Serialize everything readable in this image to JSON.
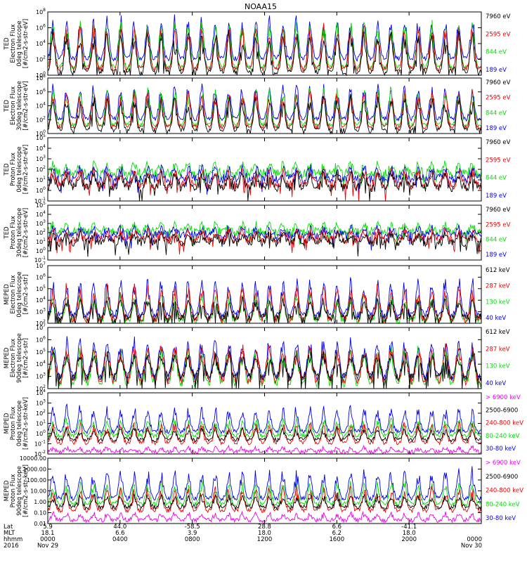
{
  "title": "NOAA15",
  "colors": {
    "black": "#000000",
    "blue": "#0000ee",
    "red": "#ee0000",
    "green": "#00dd00",
    "magenta": "#ee00ee"
  },
  "chart_data": [
    {
      "type": "line",
      "instrument": "TED",
      "ylabel": [
        "TED",
        "Electron Flux",
        "0deg telescope",
        "[#/cm2-s-str-eV]"
      ],
      "yscale": "log",
      "ylim_exp": [
        0,
        8
      ],
      "ytick_labels": [
        "10^0",
        "10^2",
        "10^4",
        "10^6",
        "10^8"
      ],
      "legend": [
        {
          "label": "7960 eV",
          "color": "black"
        },
        {
          "label": "2595 eV",
          "color": "red"
        },
        {
          "label": "844 eV",
          "color": "green"
        },
        {
          "label": "189 eV",
          "color": "blue"
        }
      ],
      "profile": "electron_ted",
      "series": [
        {
          "color": "blue",
          "base_exp": 2.1,
          "peak_exp": 7.6
        },
        {
          "color": "green",
          "base_exp": 1.0,
          "peak_exp": 7.0
        },
        {
          "color": "red",
          "base_exp": 0.8,
          "peak_exp": 6.5
        },
        {
          "color": "black",
          "base_exp": 0.4,
          "peak_exp": 5.8
        }
      ]
    },
    {
      "type": "line",
      "instrument": "TED",
      "ylabel": [
        "TED",
        "Electron Flux",
        "30deg telescope",
        "[#/cm2-s-str-eV]"
      ],
      "yscale": "log",
      "ylim_exp": [
        0,
        8
      ],
      "ytick_labels": [
        "10^0",
        "10^2",
        "10^4",
        "10^6",
        "10^8"
      ],
      "legend": [
        {
          "label": "7960 eV",
          "color": "black"
        },
        {
          "label": "2595 eV",
          "color": "red"
        },
        {
          "label": "844 eV",
          "color": "green"
        },
        {
          "label": "189 eV",
          "color": "blue"
        }
      ],
      "profile": "electron_ted",
      "series": [
        {
          "color": "blue",
          "base_exp": 2.1,
          "peak_exp": 7.2
        },
        {
          "color": "green",
          "base_exp": 1.2,
          "peak_exp": 6.8
        },
        {
          "color": "red",
          "base_exp": 0.9,
          "peak_exp": 6.2
        },
        {
          "color": "black",
          "base_exp": 0.5,
          "peak_exp": 5.6
        }
      ]
    },
    {
      "type": "line",
      "instrument": "TED",
      "ylabel": [
        "TED",
        "Proton Flux",
        "0deg telescope",
        "[#/cm2-s-str-eV]"
      ],
      "yscale": "log",
      "ylim_exp": [
        -1,
        5
      ],
      "ytick_labels": [
        "10^-1",
        "10^0",
        "10^1",
        "10^2",
        "10^3",
        "10^4",
        "10^5"
      ],
      "legend": [
        {
          "label": "7960 eV",
          "color": "black"
        },
        {
          "label": "2595 eV",
          "color": "red"
        },
        {
          "label": "844 eV",
          "color": "green"
        },
        {
          "label": "189 eV",
          "color": "blue"
        }
      ],
      "profile": "proton_ted",
      "series": [
        {
          "color": "green",
          "base_exp": 1.6,
          "peak_exp": 2.6
        },
        {
          "color": "blue",
          "base_exp": 1.1,
          "peak_exp": 2.3
        },
        {
          "color": "red",
          "base_exp": 0.5,
          "peak_exp": 2.0
        },
        {
          "color": "black",
          "base_exp": 0.3,
          "peak_exp": 1.8
        }
      ]
    },
    {
      "type": "line",
      "instrument": "TED",
      "ylabel": [
        "TED",
        "Proton Flux",
        "30deg telescope",
        "[#/cm2-s-str-eV]"
      ],
      "yscale": "log",
      "ylim_exp": [
        -1,
        5
      ],
      "ytick_labels": [
        "10^-1",
        "10^0",
        "10^1",
        "10^2",
        "10^3",
        "10^4",
        "10^5"
      ],
      "legend": [
        {
          "label": "7960 eV",
          "color": "black"
        },
        {
          "label": "2595 eV",
          "color": "red"
        },
        {
          "label": "844 eV",
          "color": "green"
        },
        {
          "label": "189 eV",
          "color": "blue"
        }
      ],
      "profile": "proton_ted",
      "series": [
        {
          "color": "green",
          "base_exp": 2.1,
          "peak_exp": 3.0
        },
        {
          "color": "blue",
          "base_exp": 1.7,
          "peak_exp": 2.6
        },
        {
          "color": "red",
          "base_exp": 1.2,
          "peak_exp": 2.3
        },
        {
          "color": "black",
          "base_exp": 0.9,
          "peak_exp": 2.0
        }
      ]
    },
    {
      "type": "line",
      "instrument": "MEPED",
      "ylabel": [
        "MEPED",
        "Electron Flux",
        "0deg telescope",
        "[#/cm2-s-str]"
      ],
      "yscale": "log",
      "ylim_exp": [
        2,
        7
      ],
      "ytick_labels": [
        "10^2",
        "10^3",
        "10^4",
        "10^5",
        "10^6",
        "10^7"
      ],
      "legend": [
        {
          "label": "612 keV",
          "color": "black"
        },
        {
          "label": "287 keV",
          "color": "red"
        },
        {
          "label": "130 keV",
          "color": "green"
        },
        {
          "label": "40 keV",
          "color": "blue"
        }
      ],
      "profile": "meped_e0",
      "series": [
        {
          "color": "blue",
          "base_exp": 2.7,
          "peak_exp": 6.0
        },
        {
          "color": "green",
          "base_exp": 2.25,
          "peak_exp": 4.5
        },
        {
          "color": "red",
          "base_exp": 2.35,
          "peak_exp": 5.3
        },
        {
          "color": "black",
          "base_exp": 2.5,
          "peak_exp": 4.2
        }
      ]
    },
    {
      "type": "line",
      "instrument": "MEPED",
      "ylabel": [
        "MEPED",
        "Electron Flux",
        "90deg telescope",
        "[#/cm2-s-str]"
      ],
      "yscale": "log",
      "ylim_exp": [
        2,
        7
      ],
      "ytick_labels": [
        "10^2",
        "10^3",
        "10^4",
        "10^5",
        "10^6",
        "10^7"
      ],
      "legend": [
        {
          "label": "612 keV",
          "color": "black"
        },
        {
          "label": "287 keV",
          "color": "red"
        },
        {
          "label": "130 keV",
          "color": "green"
        },
        {
          "label": "40 keV",
          "color": "blue"
        }
      ],
      "profile": "meped_e90",
      "series": [
        {
          "color": "blue",
          "base_exp": 2.8,
          "peak_exp": 6.1
        },
        {
          "color": "green",
          "base_exp": 2.3,
          "peak_exp": 5.3
        },
        {
          "color": "red",
          "base_exp": 2.5,
          "peak_exp": 5.6
        },
        {
          "color": "black",
          "base_exp": 2.9,
          "peak_exp": 5.0
        }
      ]
    },
    {
      "type": "line",
      "instrument": "MEPED",
      "ylabel": [
        "MEPED",
        "Proton Flux",
        "0deg telescope",
        "[#/cm2-s-str-keV]"
      ],
      "yscale": "log",
      "ylim_exp": [
        -2,
        4
      ],
      "ytick_labels": [
        "10^-2",
        "10^-1",
        "10^0",
        "10^1",
        "10^2",
        "10^3",
        "10^4"
      ],
      "legend": [
        {
          "label": "> 6900 keV",
          "color": "magenta"
        },
        {
          "label": "2500-6900",
          "color": "black"
        },
        {
          "label": "240-800 keV",
          "color": "red"
        },
        {
          "label": "80-240 keV",
          "color": "green"
        },
        {
          "label": "30-80 keV",
          "color": "blue"
        }
      ],
      "profile": "meped_p",
      "series": [
        {
          "color": "blue",
          "base_exp": 0.2,
          "peak_exp": 2.8
        },
        {
          "color": "green",
          "base_exp": -0.2,
          "peak_exp": 1.6
        },
        {
          "color": "red",
          "base_exp": -0.9,
          "peak_exp": 1.2
        },
        {
          "color": "black",
          "base_exp": -0.6,
          "peak_exp": 0.6
        },
        {
          "color": "magenta",
          "base_exp": -1.8,
          "peak_exp": -1.3
        }
      ]
    },
    {
      "type": "line",
      "instrument": "MEPED",
      "ylabel": [
        "MEPED",
        "Proton Flux",
        "90deg telescope",
        "[#/cm2-s-str-keV]"
      ],
      "yscale": "log",
      "ylim_exp": [
        -2,
        4
      ],
      "ytick_labels": [
        "0.01",
        "0.10",
        "1.00",
        "10.00",
        "100.00",
        "1000.00",
        "10000.00"
      ],
      "legend": [
        {
          "label": "> 6900 keV",
          "color": "magenta"
        },
        {
          "label": "2500-6900",
          "color": "black"
        },
        {
          "label": "240-800 keV",
          "color": "red"
        },
        {
          "label": "80-240 keV",
          "color": "green"
        },
        {
          "label": "30-80 keV",
          "color": "blue"
        }
      ],
      "profile": "meped_p",
      "series": [
        {
          "color": "blue",
          "base_exp": 0.3,
          "peak_exp": 3.1
        },
        {
          "color": "green",
          "base_exp": -0.2,
          "peak_exp": 1.9
        },
        {
          "color": "red",
          "base_exp": -0.8,
          "peak_exp": 1.4
        },
        {
          "color": "black",
          "base_exp": -0.5,
          "peak_exp": 0.7
        },
        {
          "color": "magenta",
          "base_exp": -1.7,
          "peak_exp": -1.0
        }
      ]
    }
  ],
  "time_axis": {
    "row_labels": [
      "Lat",
      "MLT",
      "hhmm",
      "2016"
    ],
    "ticks": [
      {
        "lat": "5.9",
        "mlt": "18.1",
        "hhmm": "0000",
        "date": "Nov 29"
      },
      {
        "lat": "44.0",
        "mlt": "6.6",
        "hhmm": "0400",
        "date": ""
      },
      {
        "lat": "-58.5",
        "mlt": "3.9",
        "hhmm": "0800",
        "date": ""
      },
      {
        "lat": "28.8",
        "mlt": "18.0",
        "hhmm": "1200",
        "date": ""
      },
      {
        "lat": "6.6",
        "mlt": "6.2",
        "hhmm": "1600",
        "date": ""
      },
      {
        "lat": "-41.1",
        "mlt": "18.0",
        "hhmm": "2000",
        "date": ""
      },
      {
        "lat": "",
        "mlt": "",
        "hhmm": "0000",
        "date": "Nov 30"
      }
    ]
  }
}
